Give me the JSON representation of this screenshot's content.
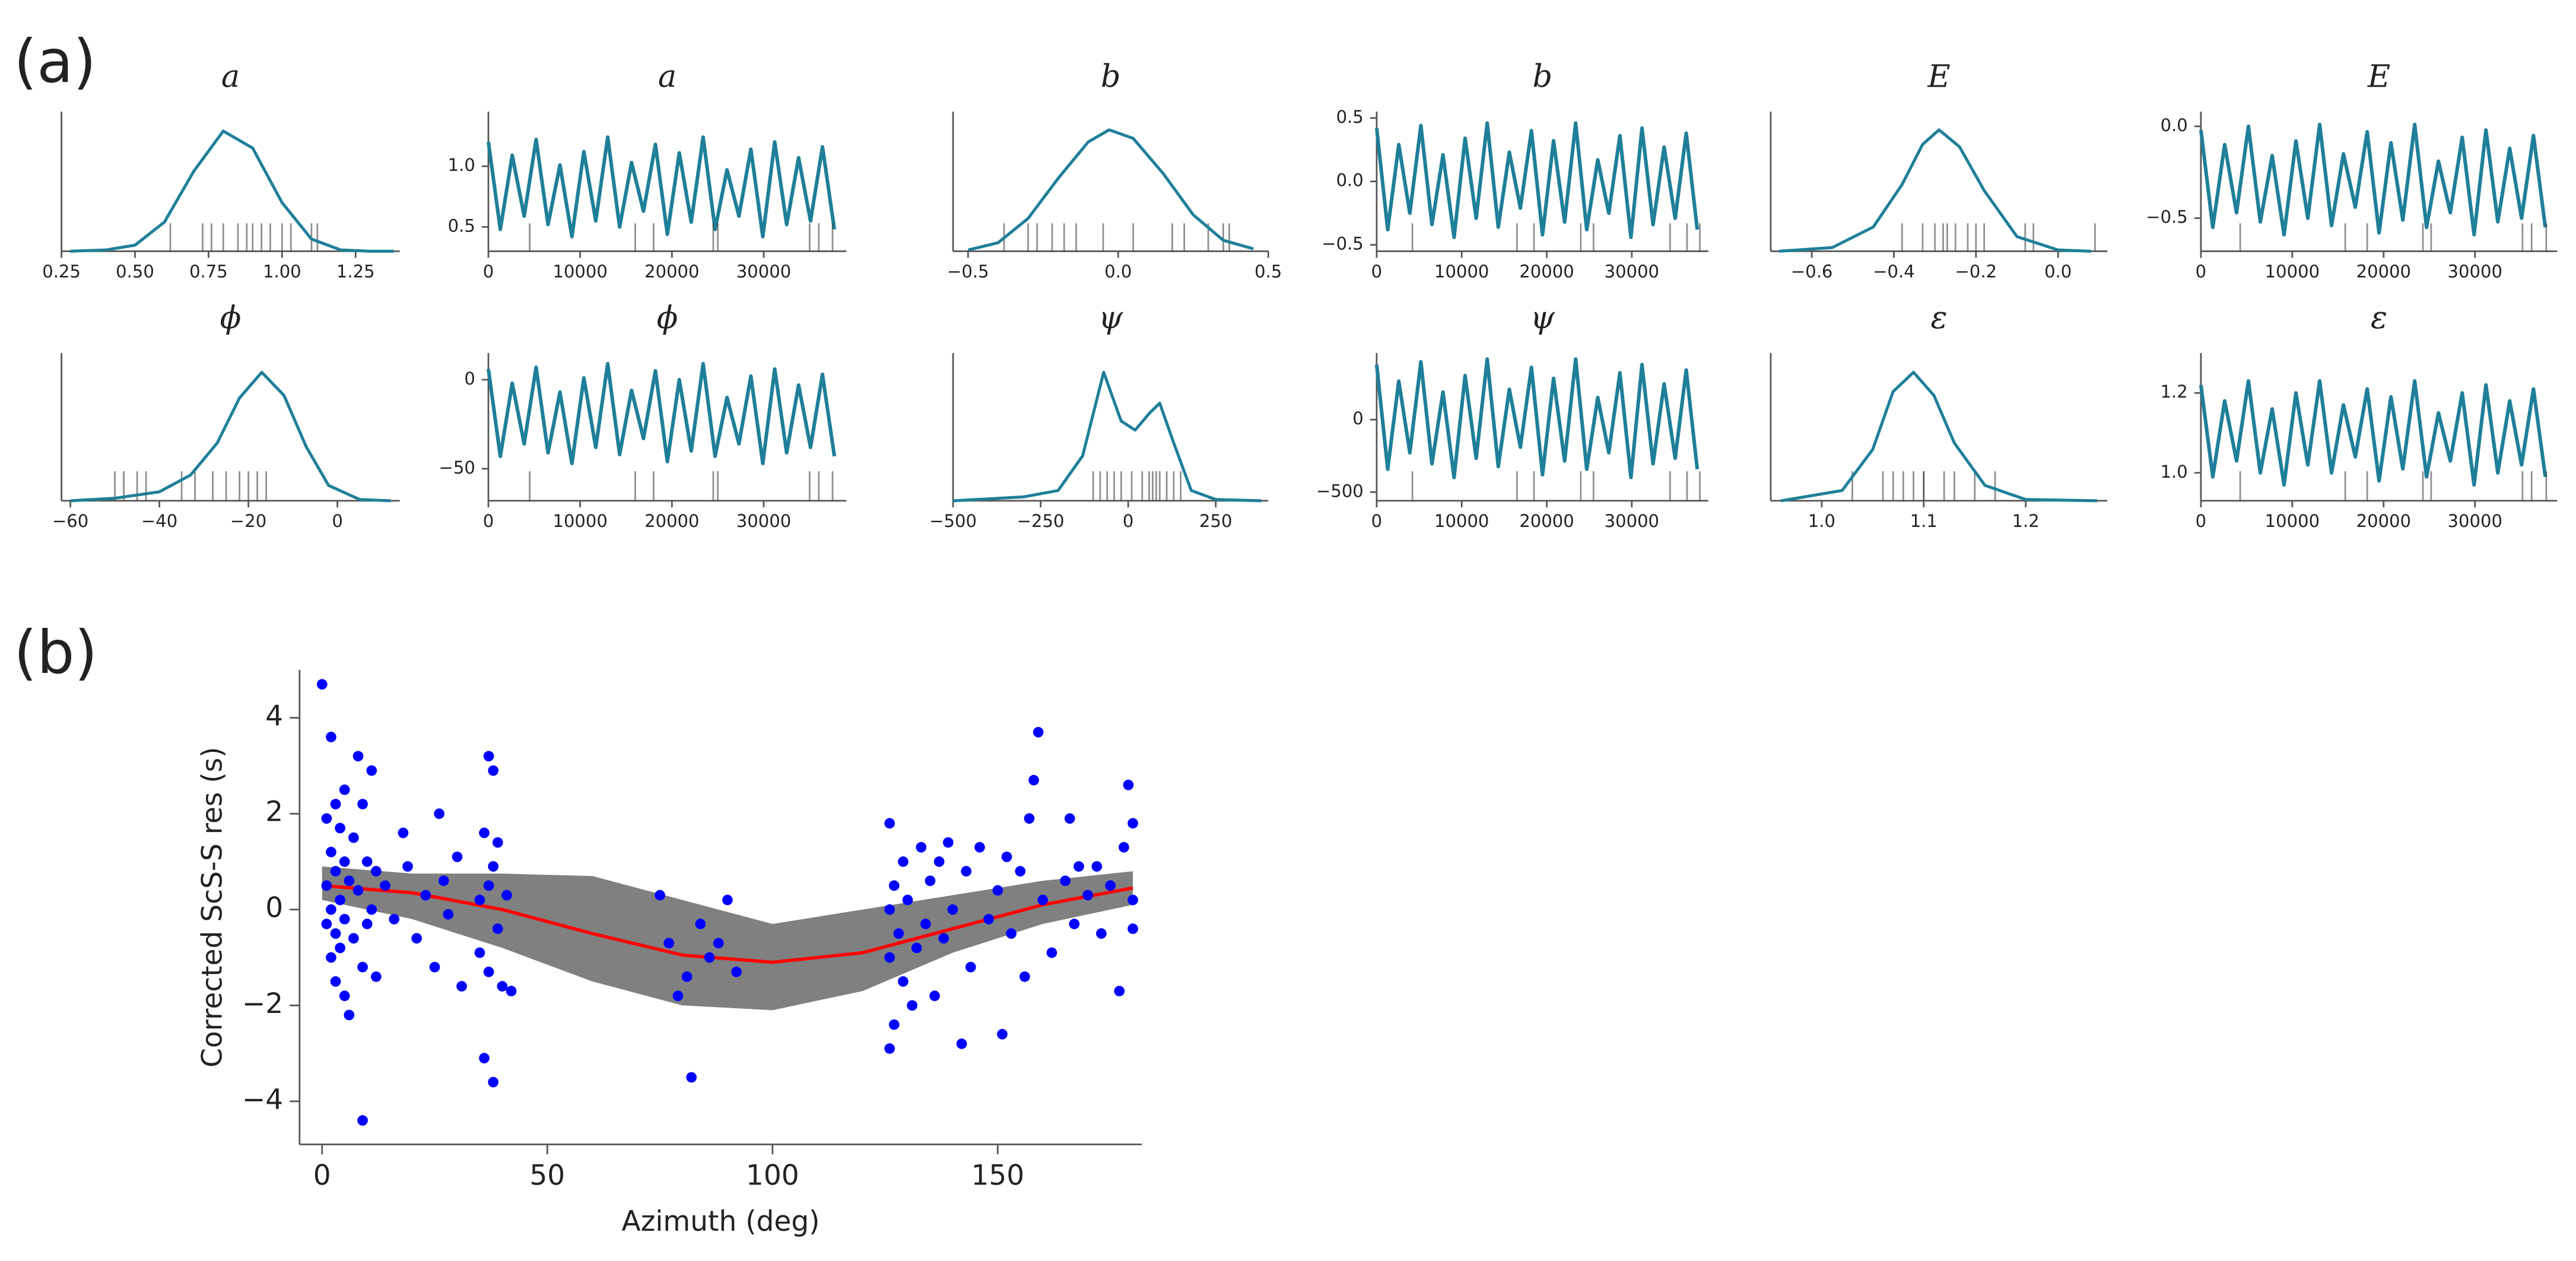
{
  "panel_labels": [
    "(a)",
    "(b)"
  ],
  "chart_data": [
    {
      "type": "line",
      "title": "a",
      "color": "#1f7f99",
      "xlim": [
        0.25,
        1.4
      ],
      "ylim": [
        0,
        1.15
      ],
      "xticks": [
        0.25,
        {
          "value": 0.5,
          "label": "0.50"
        },
        0.75,
        {
          "value": 1,
          "label": "1.00"
        },
        1.25
      ],
      "x": [
        0.28,
        0.4,
        0.5,
        0.6,
        0.7,
        0.8,
        0.9,
        1.0,
        1.1,
        1.2,
        1.3,
        1.38
      ],
      "values": [
        0,
        0.01,
        0.05,
        0.24,
        0.66,
        0.99,
        0.85,
        0.4,
        0.1,
        0.01,
        0,
        0
      ],
      "rug": [
        0.62,
        0.73,
        0.76,
        0.8,
        0.85,
        0.88,
        0.9,
        0.93,
        0.96,
        1.0,
        1.03,
        1.1,
        1.12
      ]
    },
    {
      "type": "trace",
      "title": "a",
      "color": "#1f7f99",
      "xlim": [
        0,
        39000
      ],
      "ylim": [
        0.3,
        1.45
      ],
      "xticks": [
        0,
        10000,
        20000,
        30000
      ],
      "yticks": [
        0.5,
        {
          "value": 1,
          "label": "1.0"
        }
      ],
      "x": [
        0,
        1300,
        2600,
        3900,
        5200,
        6500,
        7800,
        9100,
        10400,
        11700,
        13000,
        14300,
        15600,
        16900,
        18200,
        19500,
        20800,
        22100,
        23400,
        24700,
        26000,
        27300,
        28600,
        29900,
        31200,
        32500,
        33800,
        35100,
        36400,
        37700
      ],
      "values": [
        1.2,
        0.48,
        1.09,
        0.59,
        1.22,
        0.52,
        1.01,
        0.42,
        1.12,
        0.55,
        1.24,
        0.5,
        1.03,
        0.63,
        1.18,
        0.44,
        1.11,
        0.54,
        1.24,
        0.48,
        0.97,
        0.59,
        1.14,
        0.42,
        1.2,
        0.52,
        1.07,
        0.55,
        1.16,
        0.48
      ],
      "rug": [
        4500,
        16000,
        18000,
        24500,
        25000,
        35000,
        36000,
        37500
      ]
    },
    {
      "type": "line",
      "title": "b",
      "color": "#1f7f99",
      "xlim": [
        -0.55,
        0.5
      ],
      "ylim": [
        0,
        1.15
      ],
      "xticks": [
        {
          "value": -0.5,
          "label": "−0.5"
        },
        {
          "value": 0,
          "label": "0.0"
        },
        0.5
      ],
      "x": [
        -0.5,
        -0.4,
        -0.3,
        -0.2,
        -0.1,
        -0.03,
        0.05,
        0.15,
        0.25,
        0.35,
        0.45
      ],
      "values": [
        0.01,
        0.07,
        0.27,
        0.6,
        0.9,
        1,
        0.93,
        0.64,
        0.3,
        0.09,
        0.02
      ],
      "rug": [
        -0.38,
        -0.3,
        -0.27,
        -0.22,
        -0.18,
        -0.14,
        -0.05,
        0.05,
        0.18,
        0.22,
        0.3,
        0.35,
        0.37
      ]
    },
    {
      "type": "trace",
      "title": "b",
      "color": "#1f7f99",
      "xlim": [
        0,
        39000
      ],
      "ylim": [
        -0.55,
        0.55
      ],
      "xticks": [
        0,
        10000,
        20000,
        30000
      ],
      "yticks": [
        {
          "value": -0.5,
          "label": "−0.5"
        },
        {
          "value": 0,
          "label": "0.0"
        },
        0.5
      ],
      "x": [
        0,
        1300,
        2600,
        3900,
        5200,
        6500,
        7800,
        9100,
        10400,
        11700,
        13000,
        14300,
        15600,
        16900,
        18200,
        19500,
        20800,
        22100,
        23400,
        24700,
        26000,
        27300,
        28600,
        29900,
        31200,
        32500,
        33800,
        35100,
        36400,
        37700
      ],
      "values": [
        0.42,
        -0.38,
        0.29,
        -0.25,
        0.44,
        -0.34,
        0.21,
        -0.44,
        0.34,
        -0.29,
        0.46,
        -0.36,
        0.23,
        -0.21,
        0.4,
        -0.42,
        0.32,
        -0.32,
        0.46,
        -0.38,
        0.17,
        -0.25,
        0.36,
        -0.44,
        0.42,
        -0.34,
        0.27,
        -0.29,
        0.38,
        -0.38
      ],
      "rug": [
        4200,
        16500,
        18500,
        24000,
        25500,
        34500,
        36500,
        38000
      ]
    },
    {
      "type": "line",
      "title": "E",
      "color": "#1f7f99",
      "xlim": [
        -0.7,
        0.12
      ],
      "ylim": [
        0,
        1.15
      ],
      "xticks": [
        {
          "value": -0.6,
          "label": "−0.6"
        },
        {
          "value": -0.4,
          "label": "−0.4"
        },
        {
          "value": -0.2,
          "label": "−0.2"
        },
        {
          "value": 0,
          "label": "0.0"
        }
      ],
      "x": [
        -0.68,
        -0.55,
        -0.45,
        -0.38,
        -0.33,
        -0.29,
        -0.24,
        -0.18,
        -0.1,
        0.0,
        0.08
      ],
      "values": [
        0,
        0.03,
        0.2,
        0.55,
        0.88,
        1,
        0.86,
        0.5,
        0.12,
        0.01,
        0
      ],
      "rug": [
        -0.38,
        -0.33,
        -0.3,
        -0.28,
        -0.27,
        -0.25,
        -0.22,
        -0.2,
        -0.18,
        -0.08,
        -0.06,
        0.09
      ]
    },
    {
      "type": "trace",
      "title": "E",
      "color": "#1f7f99",
      "xlim": [
        0,
        39000
      ],
      "ylim": [
        -0.68,
        0.08
      ],
      "xticks": [
        0,
        10000,
        20000,
        30000
      ],
      "yticks": [
        {
          "value": -0.5,
          "label": "−0.5"
        },
        {
          "value": 0,
          "label": "0.0"
        }
      ],
      "x": [
        0,
        1300,
        2600,
        3900,
        5200,
        6500,
        7800,
        9100,
        10400,
        11700,
        13000,
        14300,
        15600,
        16900,
        18200,
        19500,
        20800,
        22100,
        23400,
        24700,
        26000,
        27300,
        28600,
        29900,
        31200,
        32500,
        33800,
        35100,
        36400,
        37700
      ],
      "values": [
        -0.02,
        -0.55,
        -0.1,
        -0.47,
        0.0,
        -0.52,
        -0.16,
        -0.59,
        -0.08,
        -0.5,
        0.01,
        -0.54,
        -0.15,
        -0.44,
        -0.03,
        -0.58,
        -0.09,
        -0.51,
        0.01,
        -0.55,
        -0.19,
        -0.47,
        -0.06,
        -0.59,
        -0.02,
        -0.52,
        -0.12,
        -0.5,
        -0.05,
        -0.55
      ],
      "rug": [
        4300,
        15800,
        18200,
        24300,
        25200,
        35200,
        36200,
        37800
      ]
    },
    {
      "type": "line",
      "title": "ϕ",
      "color": "#1f7f99",
      "xlim": [
        -62,
        14
      ],
      "ylim": [
        0,
        1.15
      ],
      "xticks": [
        {
          "value": -60,
          "label": "−60"
        },
        {
          "value": -40,
          "label": "−40"
        },
        {
          "value": -20,
          "label": "−20"
        },
        0
      ],
      "x": [
        -60,
        -50,
        -40,
        -33,
        -27,
        -22,
        -17,
        -12,
        -7,
        -2,
        5,
        12
      ],
      "values": [
        0,
        0.02,
        0.07,
        0.2,
        0.45,
        0.8,
        1,
        0.82,
        0.42,
        0.12,
        0.01,
        0
      ],
      "rug": [
        -50,
        -48,
        -45,
        -43,
        -35,
        -32,
        -28,
        -25,
        -22,
        -20,
        -18,
        -16
      ]
    },
    {
      "type": "trace",
      "title": "ϕ",
      "color": "#1f7f99",
      "xlim": [
        0,
        39000
      ],
      "ylim": [
        -68,
        15
      ],
      "xticks": [
        0,
        10000,
        20000,
        30000
      ],
      "yticks": [
        {
          "value": -50,
          "label": "−50"
        },
        0
      ],
      "x": [
        0,
        1300,
        2600,
        3900,
        5200,
        6500,
        7800,
        9100,
        10400,
        11700,
        13000,
        14300,
        15600,
        16900,
        18200,
        19500,
        20800,
        22100,
        23400,
        24700,
        26000,
        27300,
        28600,
        29900,
        31200,
        32500,
        33800,
        35100,
        36400,
        37700
      ],
      "values": [
        6,
        -43,
        -2,
        -36,
        7,
        -41,
        -7,
        -47,
        1,
        -38,
        9,
        -42,
        -6,
        -33,
        5,
        -46,
        0,
        -40,
        9,
        -43,
        -10,
        -36,
        2,
        -47,
        6,
        -41,
        -3,
        -38,
        3,
        -43
      ],
      "rug": [
        4500,
        16000,
        18000,
        24500,
        25000,
        35000,
        36000,
        37500
      ]
    },
    {
      "type": "line",
      "title": "ψ",
      "color": "#1f7f99",
      "xlim": [
        -500,
        400
      ],
      "ylim": [
        0,
        1.15
      ],
      "xticks": [
        {
          "value": -500,
          "label": "−500"
        },
        {
          "value": -250,
          "label": "−250"
        },
        0,
        250
      ],
      "x": [
        -500,
        -300,
        -200,
        -130,
        -70,
        -20,
        20,
        60,
        90,
        130,
        180,
        250,
        380
      ],
      "values": [
        0,
        0.03,
        0.08,
        0.35,
        1,
        0.62,
        0.55,
        0.68,
        0.76,
        0.45,
        0.08,
        0.01,
        0
      ],
      "rug": [
        -100,
        -80,
        -60,
        -40,
        -20,
        10,
        40,
        60,
        70,
        80,
        90,
        110,
        130,
        150
      ]
    },
    {
      "type": "trace",
      "title": "ψ",
      "color": "#1f7f99",
      "xlim": [
        0,
        39000
      ],
      "ylim": [
        -560,
        460
      ],
      "xticks": [
        0,
        10000,
        20000,
        30000
      ],
      "yticks": [
        {
          "value": -500,
          "label": "−500"
        },
        0
      ],
      "x": [
        0,
        1300,
        2600,
        3900,
        5200,
        6500,
        7800,
        9100,
        10400,
        11700,
        13000,
        14300,
        15600,
        16900,
        18200,
        19500,
        20800,
        22100,
        23400,
        24700,
        26000,
        27300,
        28600,
        29900,
        31200,
        32500,
        33800,
        35100,
        36400,
        37700
      ],
      "values": [
        380,
        -342,
        266,
        -228,
        399,
        -304,
        190,
        -399,
        304,
        -266,
        418,
        -323,
        209,
        -190,
        361,
        -380,
        285,
        -285,
        418,
        -342,
        152,
        -228,
        323,
        -399,
        380,
        -304,
        247,
        -266,
        342,
        -342
      ],
      "rug": [
        4200,
        16500,
        18500,
        24000,
        25500,
        34500,
        36500,
        38000
      ]
    },
    {
      "type": "line",
      "title": "ε",
      "color": "#1f7f99",
      "xlim": [
        0.95,
        1.28
      ],
      "ylim": [
        0,
        1.15
      ],
      "xticks": [
        {
          "value": 1,
          "label": "1.0"
        },
        1.1,
        1.2
      ],
      "x": [
        0.96,
        1.02,
        1.05,
        1.07,
        1.09,
        1.11,
        1.13,
        1.16,
        1.2,
        1.27
      ],
      "values": [
        0,
        0.08,
        0.4,
        0.85,
        1,
        0.82,
        0.45,
        0.12,
        0.01,
        0
      ],
      "rug": [
        1.03,
        1.06,
        1.07,
        1.08,
        1.09,
        1.1,
        1.1,
        1.12,
        1.13,
        1.15,
        1.17
      ]
    },
    {
      "type": "trace",
      "title": "ε",
      "color": "#1f7f99",
      "xlim": [
        0,
        39000
      ],
      "ylim": [
        0.93,
        1.3
      ],
      "xticks": [
        0,
        10000,
        20000,
        30000
      ],
      "yticks": [
        {
          "value": 1,
          "label": "1.0"
        },
        1.2
      ],
      "x": [
        0,
        1300,
        2600,
        3900,
        5200,
        6500,
        7800,
        9100,
        10400,
        11700,
        13000,
        14300,
        15600,
        16900,
        18200,
        19500,
        20800,
        22100,
        23400,
        24700,
        26000,
        27300,
        28600,
        29900,
        31200,
        32500,
        33800,
        35100,
        36400,
        37700
      ],
      "values": [
        1.22,
        0.99,
        1.18,
        1.03,
        1.23,
        1.0,
        1.16,
        0.97,
        1.2,
        1.02,
        1.23,
        1.0,
        1.17,
        1.04,
        1.21,
        0.98,
        1.19,
        1.01,
        1.23,
        0.99,
        1.15,
        1.03,
        1.2,
        0.97,
        1.22,
        1.0,
        1.18,
        1.02,
        1.21,
        0.99
      ],
      "rug": [
        4300,
        15800,
        18200,
        24300,
        25200,
        35200,
        36200,
        37800
      ]
    },
    {
      "type": "scatter",
      "x_label": "Azimuth (deg)",
      "y_label": "Corrected ScS-S res (s)",
      "color": "#0000ff",
      "xlim": [
        -5,
        182
      ],
      "ylim": [
        -4.9,
        5.0
      ],
      "xticks": [
        0,
        50,
        100,
        150
      ],
      "yticks": [
        {
          "value": -4,
          "label": "−4"
        },
        {
          "value": -2,
          "label": "−2"
        },
        0,
        2,
        4
      ],
      "x": [
        0,
        1,
        1,
        1,
        2,
        2,
        2,
        2,
        3,
        3,
        3,
        3,
        4,
        4,
        4,
        5,
        5,
        5,
        5,
        6,
        6,
        7,
        7,
        8,
        8,
        9,
        9,
        9,
        10,
        10,
        11,
        11,
        12,
        12,
        14,
        16,
        18,
        19,
        21,
        23,
        25,
        26,
        27,
        28,
        30,
        31,
        35,
        35,
        36,
        36,
        37,
        37,
        37,
        38,
        38,
        38,
        39,
        39,
        40,
        41,
        42,
        75,
        77,
        79,
        81,
        82,
        84,
        86,
        88,
        90,
        92,
        126,
        126,
        126,
        126,
        127,
        127,
        128,
        129,
        129,
        130,
        131,
        132,
        133,
        134,
        135,
        136,
        137,
        138,
        139,
        140,
        142,
        143,
        144,
        146,
        148,
        150,
        151,
        152,
        153,
        155,
        156,
        157,
        158,
        159,
        160,
        162,
        165,
        166,
        167,
        168,
        170,
        172,
        173,
        175,
        177,
        178,
        179,
        180,
        180,
        180
      ],
      "values": [
        4.7,
        1.9,
        0.5,
        -0.3,
        3.6,
        1.2,
        0,
        -1,
        2.2,
        0.8,
        -0.5,
        -1.5,
        1.7,
        0.2,
        -0.8,
        2.5,
        1,
        -0.2,
        -1.8,
        0.6,
        -2.2,
        1.5,
        -0.6,
        3.2,
        0.4,
        -4.4,
        2.2,
        -1.2,
        1,
        -0.3,
        2.9,
        0,
        -1.4,
        0.8,
        0.5,
        -0.2,
        1.6,
        0.9,
        -0.6,
        0.3,
        -1.2,
        2,
        0.6,
        -0.1,
        1.1,
        -1.6,
        0.2,
        -0.9,
        1.6,
        -3.1,
        3.2,
        0.5,
        -1.3,
        -3.6,
        2.9,
        0.9,
        -0.4,
        1.4,
        -1.6,
        0.3,
        -1.7,
        0.3,
        -0.7,
        -1.8,
        -1.4,
        -3.5,
        -0.3,
        -1,
        -0.7,
        0.2,
        -1.3,
        1.8,
        0,
        -1,
        -2.9,
        0.5,
        -2.4,
        -0.5,
        1,
        -1.5,
        0.2,
        -2,
        -0.8,
        1.3,
        -0.3,
        0.6,
        -1.8,
        1,
        -0.6,
        1.4,
        0,
        -2.8,
        0.8,
        -1.2,
        1.3,
        -0.2,
        0.4,
        -2.6,
        1.1,
        -0.5,
        0.8,
        -1.4,
        1.9,
        2.7,
        3.7,
        0.2,
        -0.9,
        0.6,
        1.9,
        -0.3,
        0.9,
        0.3,
        0.9,
        -0.5,
        0.5,
        -1.7,
        1.3,
        2.6,
        0.2,
        -0.4,
        1.8
      ],
      "band": {
        "color": "#808080",
        "x": [
          0,
          20,
          40,
          60,
          80,
          100,
          120,
          140,
          160,
          180
        ],
        "upper": [
          0.9,
          0.75,
          0.75,
          0.7,
          0.2,
          -0.3,
          0.0,
          0.3,
          0.6,
          0.8
        ],
        "lower": [
          0.2,
          -0.2,
          -0.8,
          -1.5,
          -2.0,
          -2.1,
          -1.7,
          -0.9,
          -0.3,
          0.1
        ]
      },
      "fit": {
        "color": "#ff0000",
        "x": [
          0,
          20,
          40,
          60,
          80,
          100,
          120,
          140,
          160,
          180
        ],
        "values": [
          0.5,
          0.35,
          0.0,
          -0.5,
          -0.95,
          -1.1,
          -0.9,
          -0.4,
          0.1,
          0.45
        ]
      }
    }
  ]
}
